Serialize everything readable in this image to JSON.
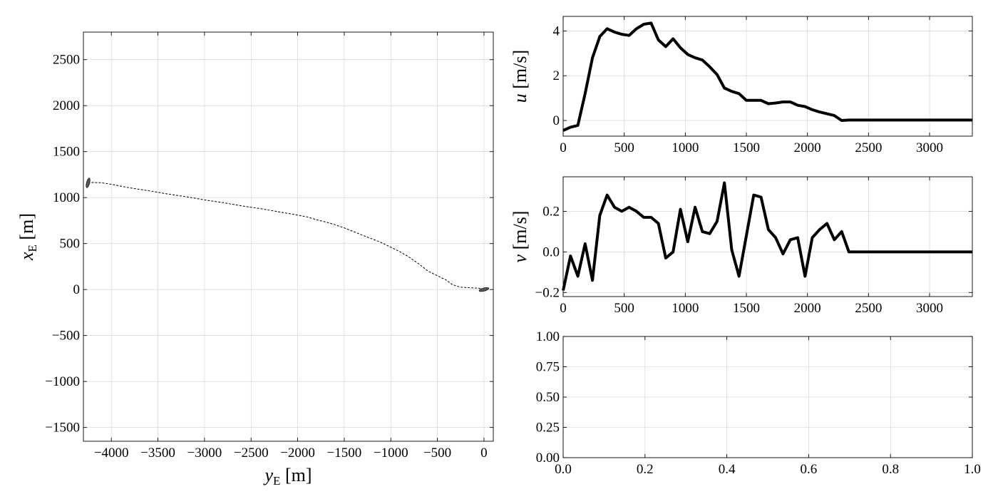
{
  "chart_data": [
    {
      "type": "line",
      "panel": "trajectory",
      "xlabel": "y",
      "xlabel_sub": "E",
      "xlabel_unit": " [m]",
      "ylabel": "x",
      "ylabel_sub": "E",
      "ylabel_unit": " [m]",
      "xlim": [
        -4300,
        100
      ],
      "ylim": [
        -1650,
        2800
      ],
      "x_ticks": [
        -4000,
        -3500,
        -3000,
        -2500,
        -2000,
        -1500,
        -1000,
        -500,
        0
      ],
      "x_tick_labels": [
        "−4000",
        "−3500",
        "−3000",
        "−2500",
        "−2000",
        "−1500",
        "−1000",
        "−500",
        "0"
      ],
      "y_ticks": [
        -1500,
        -1000,
        -500,
        0,
        500,
        1000,
        1500,
        2000,
        2500
      ],
      "y_tick_labels": [
        "−1500",
        "−1000",
        "−500",
        "0",
        "500",
        "1000",
        "1500",
        "2000",
        "2500"
      ],
      "grid": true,
      "line_style": "dashed",
      "series": [
        {
          "x": [
            0,
            -60,
            -150,
            -250,
            -300,
            -350,
            -400,
            -500,
            -600,
            -700,
            -800,
            -900,
            -1000,
            -1100,
            -1200,
            -1300,
            -1400,
            -1500,
            -1600,
            -1700,
            -1800,
            -1900,
            -2000,
            -2200,
            -2400,
            -2600,
            -2800,
            -3000,
            -3200,
            -3400,
            -3600,
            -3800,
            -3900,
            -4000,
            -4100,
            -4200,
            -4250
          ],
          "y": [
            0,
            15,
            20,
            25,
            40,
            60,
            100,
            150,
            200,
            280,
            350,
            410,
            460,
            510,
            550,
            590,
            630,
            670,
            705,
            735,
            760,
            790,
            810,
            845,
            880,
            910,
            945,
            975,
            1010,
            1040,
            1075,
            1105,
            1125,
            1145,
            1160,
            1165,
            1155
          ]
        }
      ],
      "markers": [
        {
          "name": "ship-start",
          "x": 0,
          "y": 0
        },
        {
          "name": "ship-end",
          "x": -4250,
          "y": 1160
        }
      ]
    },
    {
      "type": "line",
      "panel": "u",
      "ylabel": "u",
      "ylabel_unit": " [m/s]",
      "xlim": [
        0,
        3350
      ],
      "ylim": [
        -0.7,
        4.65
      ],
      "x_ticks": [
        0,
        500,
        1000,
        1500,
        2000,
        2500,
        3000
      ],
      "x_tick_labels": [
        "0",
        "500",
        "1000",
        "1500",
        "2000",
        "2500",
        "3000"
      ],
      "y_ticks": [
        0,
        2,
        4
      ],
      "y_tick_labels": [
        "0",
        "2",
        "4"
      ],
      "grid": true,
      "series": [
        {
          "x": [
            0,
            60,
            120,
            180,
            240,
            300,
            360,
            420,
            480,
            540,
            600,
            660,
            720,
            780,
            840,
            900,
            960,
            1020,
            1080,
            1140,
            1200,
            1260,
            1320,
            1380,
            1440,
            1500,
            1560,
            1620,
            1680,
            1740,
            1800,
            1860,
            1920,
            1980,
            2040,
            2100,
            2160,
            2220,
            2280,
            2340,
            3350
          ],
          "y": [
            -0.45,
            -0.3,
            -0.22,
            1.2,
            2.8,
            3.75,
            4.1,
            3.95,
            3.85,
            3.8,
            4.1,
            4.3,
            4.35,
            3.6,
            3.3,
            3.65,
            3.25,
            2.95,
            2.8,
            2.7,
            2.4,
            2.05,
            1.45,
            1.3,
            1.2,
            0.9,
            0.9,
            0.9,
            0.75,
            0.78,
            0.83,
            0.83,
            0.68,
            0.62,
            0.48,
            0.38,
            0.3,
            0.22,
            0.0,
            0.02,
            0.02
          ]
        }
      ]
    },
    {
      "type": "line",
      "panel": "v",
      "ylabel": "v",
      "ylabel_unit": " [m/s]",
      "xlim": [
        0,
        3350
      ],
      "ylim": [
        -0.22,
        0.37
      ],
      "x_ticks": [
        0,
        500,
        1000,
        1500,
        2000,
        2500,
        3000
      ],
      "x_tick_labels": [
        "0",
        "500",
        "1000",
        "1500",
        "2000",
        "2500",
        "3000"
      ],
      "y_ticks": [
        -0.2,
        0.0,
        0.2
      ],
      "y_tick_labels": [
        "−0.2",
        "0.0",
        "0.2"
      ],
      "grid": true,
      "series": [
        {
          "x": [
            0,
            60,
            120,
            180,
            240,
            300,
            360,
            420,
            480,
            540,
            600,
            660,
            720,
            780,
            840,
            900,
            960,
            1020,
            1080,
            1140,
            1200,
            1260,
            1320,
            1380,
            1440,
            1500,
            1560,
            1620,
            1680,
            1740,
            1800,
            1860,
            1920,
            1980,
            2040,
            2100,
            2160,
            2220,
            2280,
            2340,
            3350
          ],
          "y": [
            -0.19,
            -0.02,
            -0.12,
            0.04,
            -0.14,
            0.18,
            0.28,
            0.22,
            0.2,
            0.22,
            0.2,
            0.17,
            0.17,
            0.14,
            -0.03,
            0.0,
            0.21,
            0.05,
            0.22,
            0.1,
            0.09,
            0.15,
            0.34,
            0.01,
            -0.12,
            0.08,
            0.28,
            0.27,
            0.11,
            0.07,
            -0.01,
            0.06,
            0.07,
            -0.12,
            0.07,
            0.11,
            0.14,
            0.06,
            0.1,
            0.0,
            0.0
          ]
        }
      ]
    },
    {
      "type": "line",
      "panel": "empty",
      "xlim": [
        0,
        1
      ],
      "ylim": [
        0,
        1
      ],
      "x_ticks": [
        0,
        0.2,
        0.4,
        0.6,
        0.8,
        1.0
      ],
      "x_tick_labels": [
        "0.0",
        "0.2",
        "0.4",
        "0.6",
        "0.8",
        "1.0"
      ],
      "y_ticks": [
        0,
        0.25,
        0.5,
        0.75,
        1.0
      ],
      "y_tick_labels": [
        "0.00",
        "0.25",
        "0.50",
        "0.75",
        "1.00"
      ],
      "grid": true,
      "series": []
    }
  ]
}
